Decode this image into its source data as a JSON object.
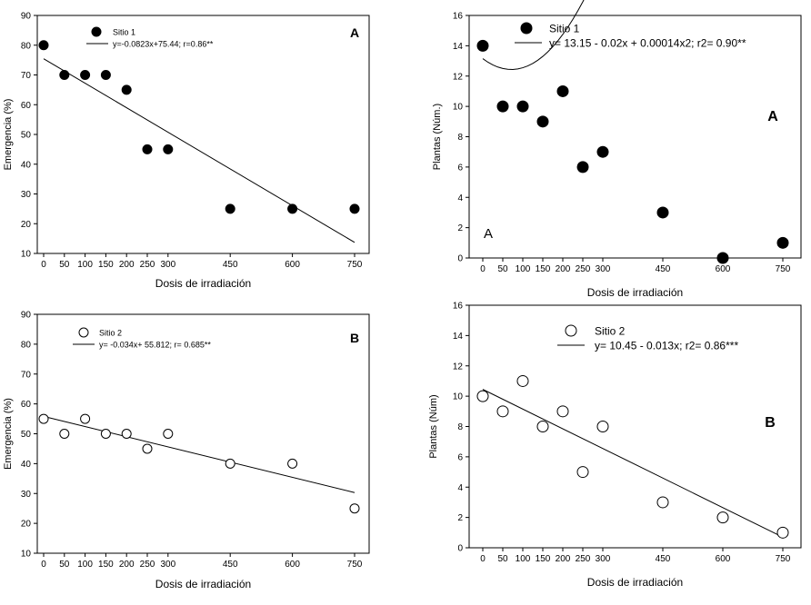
{
  "chart_data": [
    {
      "type": "scatter",
      "panel_letter": "A",
      "xlabel": "Dosis de irradiación",
      "ylabel": "Emergencia (%)",
      "xlim": [
        0,
        750
      ],
      "ylim": [
        10,
        90
      ],
      "xticks": [
        0,
        50,
        100,
        150,
        200,
        250,
        300,
        450,
        600,
        750
      ],
      "yticks": [
        10,
        20,
        30,
        40,
        50,
        60,
        70,
        80,
        90
      ],
      "grid": false,
      "legend_position": "top-center",
      "marker_fill": "#000000",
      "series": [
        {
          "name": "Sitio 1",
          "x": [
            0,
            50,
            100,
            150,
            200,
            250,
            300,
            450,
            600,
            750
          ],
          "y": [
            80,
            70,
            70,
            70,
            65,
            45,
            45,
            25,
            25,
            25
          ]
        }
      ],
      "fit": {
        "label": "y=-0.0823x+75.44; r=0.86**",
        "a": 75.44,
        "b": -0.0823,
        "c": 0,
        "x_range": [
          0,
          750
        ]
      }
    },
    {
      "type": "scatter",
      "panel_letter": "A",
      "extra_letter": "A",
      "xlabel": "Dosis de irradiación",
      "ylabel": "Plantas (Núm.)",
      "xlim": [
        0,
        750
      ],
      "ylim": [
        0,
        16
      ],
      "xticks": [
        0,
        50,
        100,
        150,
        200,
        250,
        300,
        450,
        600,
        750
      ],
      "yticks": [
        0,
        2,
        4,
        6,
        8,
        10,
        12,
        14,
        16
      ],
      "grid": false,
      "legend_position": "top-center",
      "marker_fill": "#000000",
      "series": [
        {
          "name": "Sitio 1",
          "x": [
            0,
            50,
            100,
            150,
            200,
            250,
            300,
            450,
            600,
            750
          ],
          "y": [
            14,
            10,
            10,
            9,
            11,
            6,
            7,
            3,
            0,
            1
          ]
        }
      ],
      "fit": {
        "label": "y= 13.15 - 0.02x + 0.00014x2; r2= 0.90**",
        "a": 13.15,
        "b": -0.02,
        "c": 0.00014,
        "x_range": [
          0,
          750
        ]
      }
    },
    {
      "type": "scatter",
      "panel_letter": "B",
      "xlabel": "Dosis de irradiación",
      "ylabel": "Emergencia (%)",
      "xlim": [
        0,
        750
      ],
      "ylim": [
        10,
        90
      ],
      "xticks": [
        0,
        50,
        100,
        150,
        200,
        250,
        300,
        450,
        600,
        750
      ],
      "yticks": [
        10,
        20,
        30,
        40,
        50,
        60,
        70,
        80,
        90
      ],
      "grid": false,
      "legend_position": "top-center",
      "marker_fill": "#ffffff",
      "series": [
        {
          "name": "Sitio 2",
          "x": [
            0,
            50,
            100,
            150,
            200,
            250,
            300,
            450,
            600,
            750
          ],
          "y": [
            55,
            50,
            55,
            50,
            50,
            45,
            50,
            40,
            40,
            25
          ]
        }
      ],
      "fit": {
        "label": "y= -0.034x+ 55.812; r= 0.685**",
        "a": 55.812,
        "b": -0.034,
        "c": 0,
        "x_range": [
          0,
          750
        ]
      }
    },
    {
      "type": "scatter",
      "panel_letter": "B",
      "xlabel": "Dosis de irradiación",
      "ylabel": "Plantas (Núm)",
      "xlim": [
        0,
        750
      ],
      "ylim": [
        0,
        16
      ],
      "xticks": [
        0,
        50,
        100,
        150,
        200,
        250,
        300,
        450,
        600,
        750
      ],
      "yticks": [
        0,
        2,
        4,
        6,
        8,
        10,
        12,
        14,
        16
      ],
      "grid": false,
      "legend_position": "top-center",
      "marker_fill": "#ffffff",
      "series": [
        {
          "name": "Sitio 2",
          "x": [
            0,
            50,
            100,
            150,
            200,
            250,
            300,
            450,
            600,
            750
          ],
          "y": [
            10,
            9,
            11,
            8,
            9,
            5,
            8,
            3,
            2,
            1
          ]
        }
      ],
      "fit": {
        "label": "y= 10.45 - 0.013x; r2= 0.86***",
        "a": 10.45,
        "b": -0.013,
        "c": 0,
        "x_range": [
          0,
          750
        ]
      }
    }
  ]
}
